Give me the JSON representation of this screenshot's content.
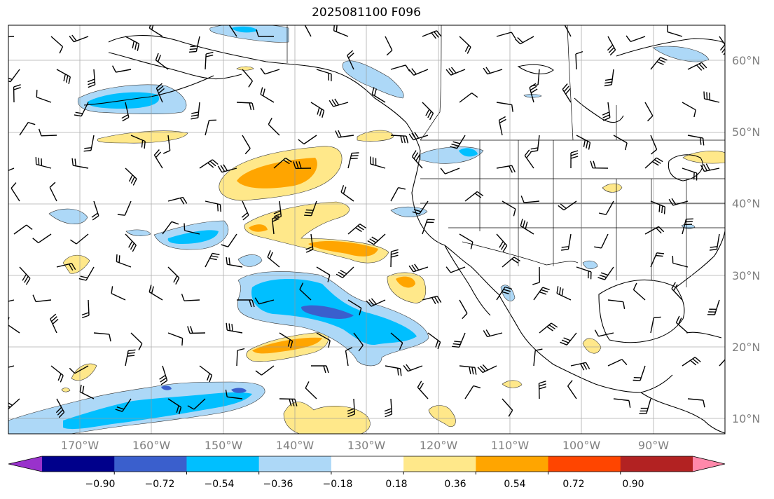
{
  "title": "2025081100 F096",
  "lat_labels": [
    "60°N",
    "50°N",
    "40°N",
    "30°N",
    "20°N",
    "10°N"
  ],
  "lon_labels": [
    "170°W",
    "160°W",
    "150°W",
    "140°W",
    "130°W",
    "120°W",
    "110°W",
    "100°W",
    "90°W"
  ],
  "colorbar": {
    "ticks": [
      "−0.90",
      "−0.72",
      "−0.54",
      "−0.36",
      "−0.18",
      "0.18",
      "0.36",
      "0.54",
      "0.72",
      "0.90"
    ],
    "colors": [
      "#9932cc",
      "#00008b",
      "#3a5fcd",
      "#00bfff",
      "#add8f7",
      "#ffffff",
      "#ffe88a",
      "#ffa500",
      "#ff4500",
      "#b22222",
      "#ff88aa"
    ]
  },
  "map": {
    "extent_lon": [
      -180,
      -80
    ],
    "extent_lat": [
      8,
      65
    ],
    "gridlines": true,
    "projection": "PlateCarree",
    "fill_levels": [
      -0.9,
      -0.72,
      -0.54,
      -0.36,
      -0.18,
      0.18,
      0.36,
      0.54,
      0.72,
      0.9
    ],
    "shows_wind_barbs": true
  }
}
